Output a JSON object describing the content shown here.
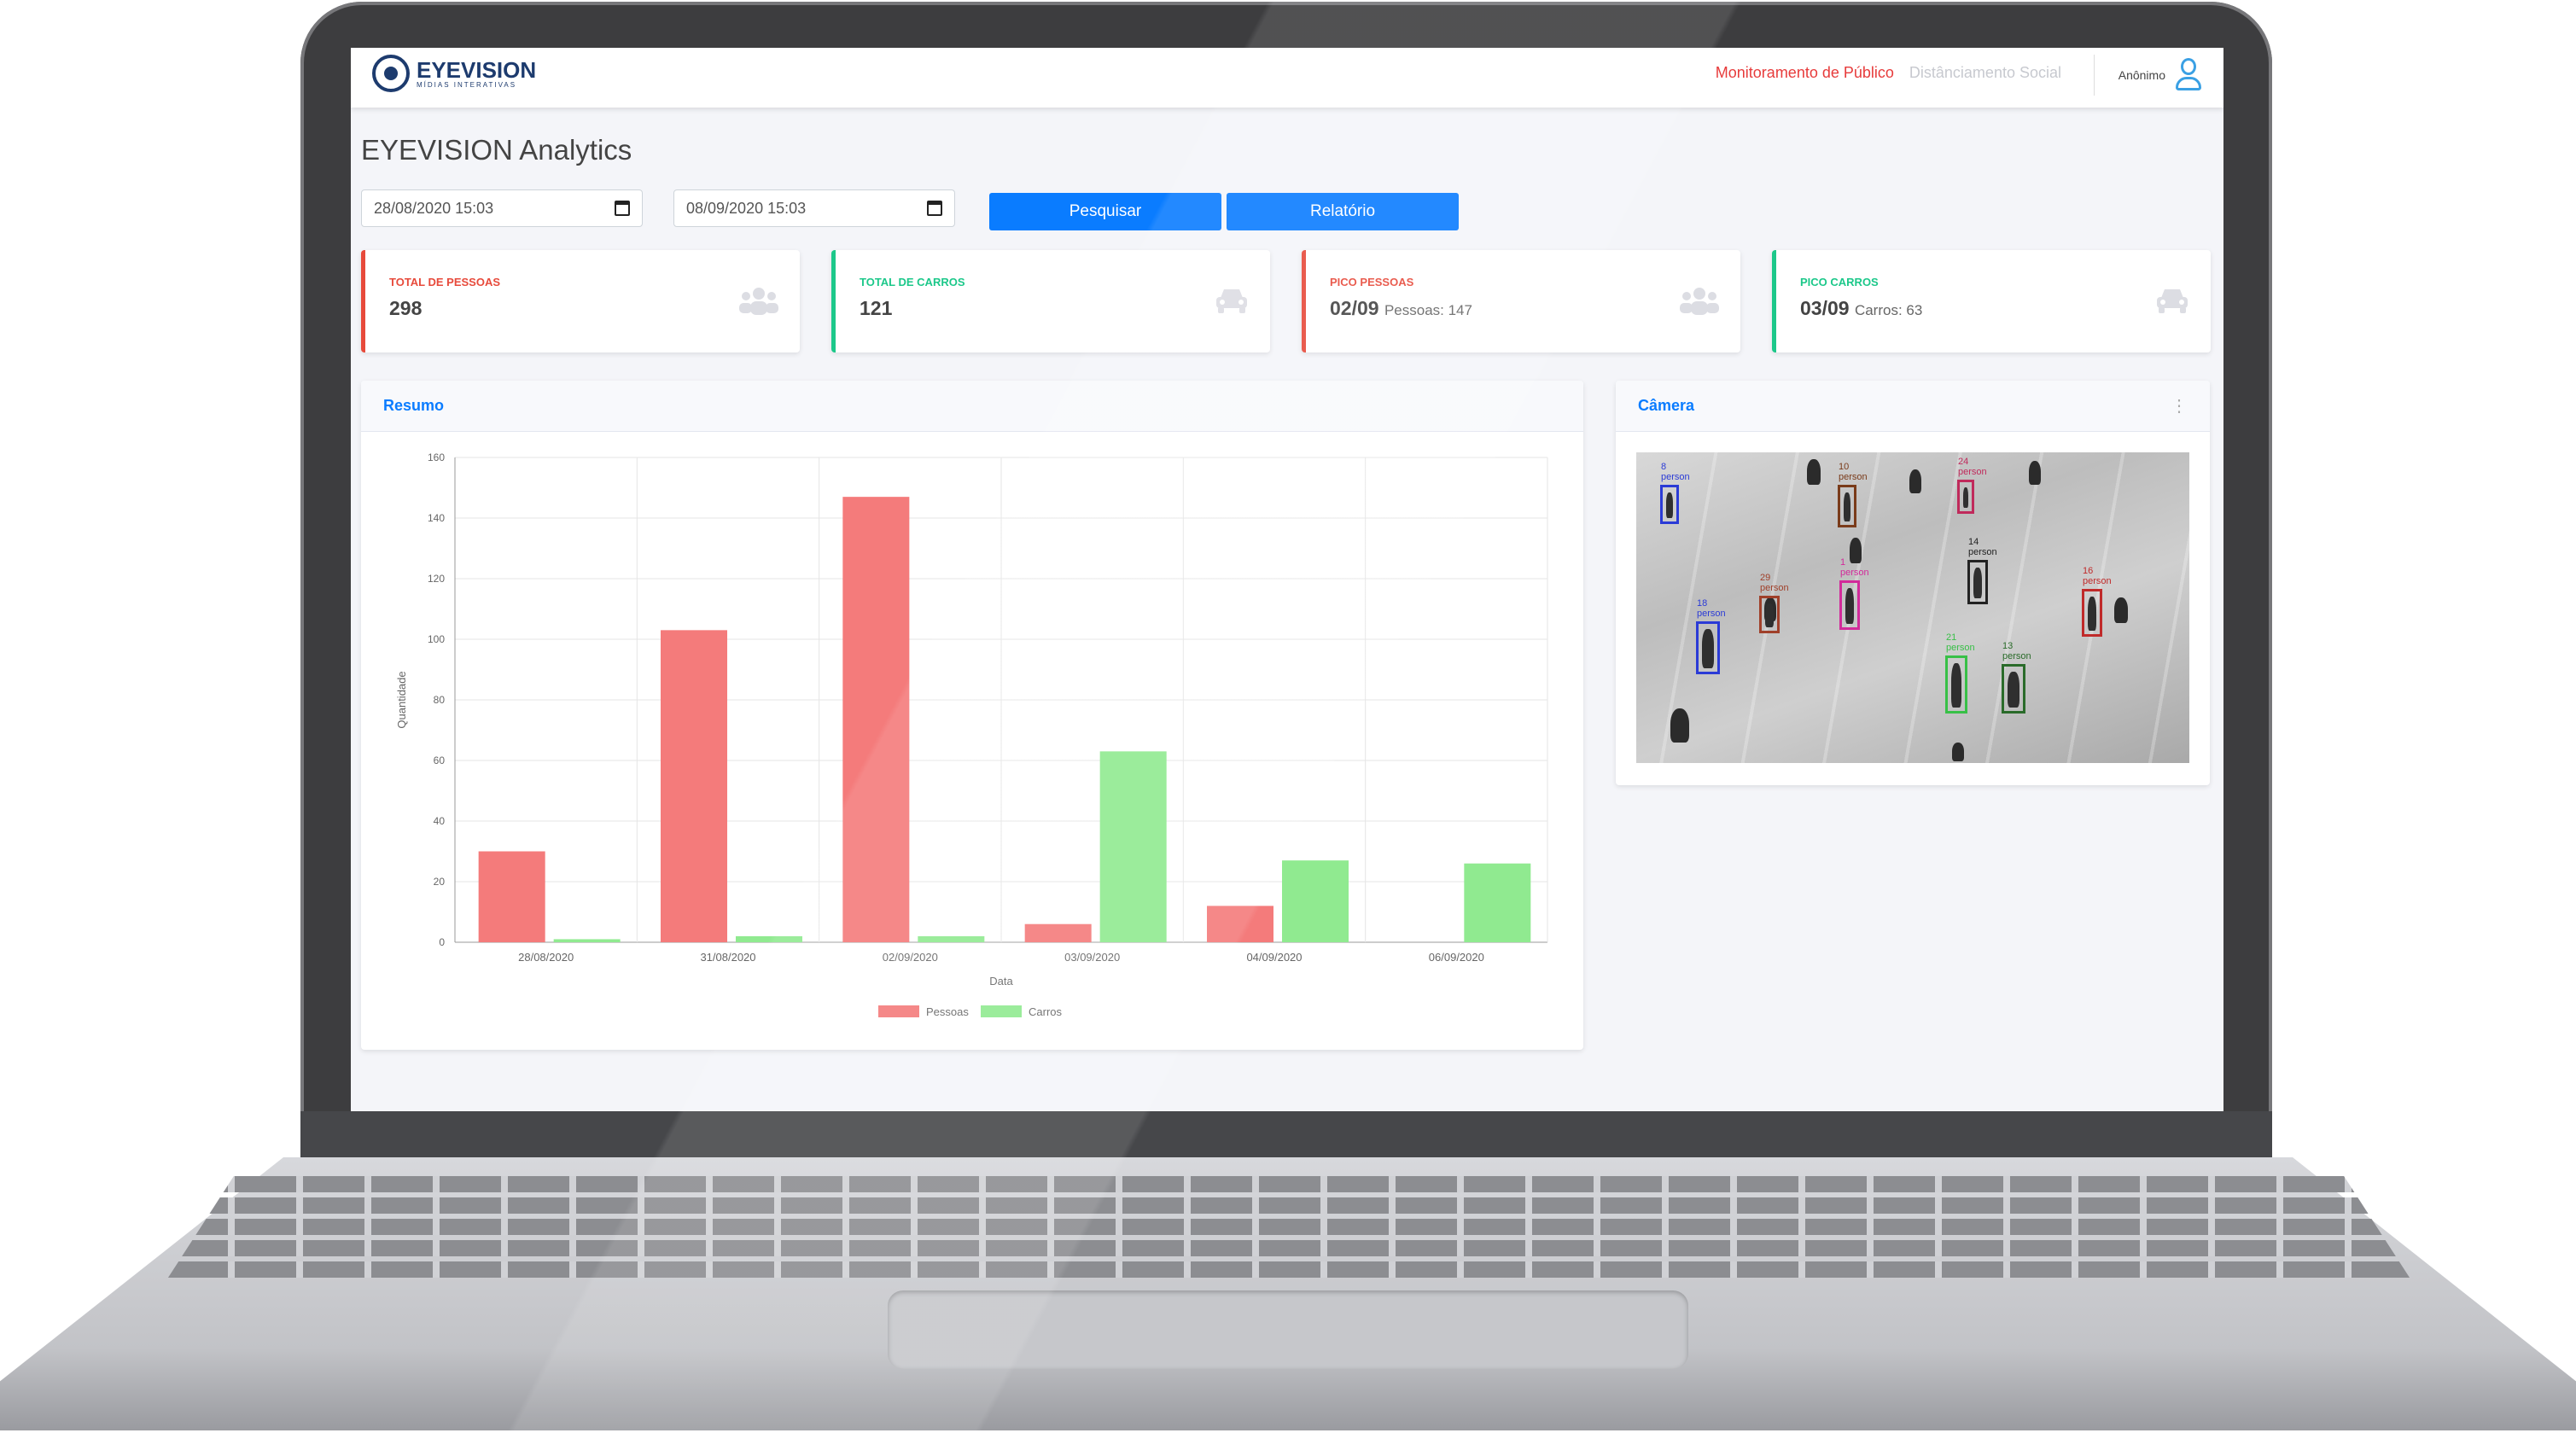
{
  "app": {
    "logo_text": "EYEVISION",
    "logo_subtitle": "MÍDIAS INTERATIVAS",
    "nav": [
      "Monitoramento de Público",
      "Distânciamento Social"
    ],
    "user_name": "Anônimo",
    "colors": {
      "accent": "#0a7cff",
      "nav_active": "#e73b3b",
      "danger": "#e74a3b",
      "success": "#1cc88a"
    }
  },
  "page": {
    "title": "EYEVISION Analytics"
  },
  "filters": {
    "start": "28/08/2020 15:03",
    "end": "08/09/2020 15:03",
    "search_label": "Pesquisar",
    "report_label": "Relatório"
  },
  "cards": [
    {
      "label": "TOTAL DE PESSOAS",
      "value": "298",
      "sub": "",
      "color": "#e74a3b",
      "icon": "users-icon"
    },
    {
      "label": "TOTAL DE CARROS",
      "value": "121",
      "sub": "",
      "color": "#1cc88a",
      "icon": "car-icon"
    },
    {
      "label": "PICO PESSOAS",
      "value": "02/09",
      "sub": "Pessoas: 147",
      "color": "#e74a3b",
      "icon": "users-icon"
    },
    {
      "label": "PICO CARROS",
      "value": "03/09",
      "sub": "Carros: 63",
      "color": "#1cc88a",
      "icon": "car-icon"
    }
  ],
  "summary_panel": {
    "title": "Resumo"
  },
  "camera_panel": {
    "title": "Câmera",
    "detections": [
      {
        "id": "8",
        "cls": "person",
        "color": "#2b3bd6"
      },
      {
        "id": "10",
        "cls": "person",
        "color": "#7a3b1a"
      },
      {
        "id": "24",
        "cls": "person",
        "color": "#c02a5b"
      },
      {
        "id": "14",
        "cls": "person",
        "color": "#222222"
      },
      {
        "id": "29",
        "cls": "person",
        "color": "#a0402a"
      },
      {
        "id": "1",
        "cls": "person",
        "color": "#d22a9a"
      },
      {
        "id": "18",
        "cls": "person",
        "color": "#2b3bd6"
      },
      {
        "id": "16",
        "cls": "person",
        "color": "#c02a2a"
      },
      {
        "id": "21",
        "cls": "person",
        "color": "#38c047"
      },
      {
        "id": "13",
        "cls": "person",
        "color": "#2a6b2a"
      }
    ]
  },
  "chart_data": {
    "type": "bar",
    "categories": [
      "28/08/2020",
      "31/08/2020",
      "02/09/2020",
      "03/09/2020",
      "04/09/2020",
      "06/09/2020"
    ],
    "series": [
      {
        "name": "Pessoas",
        "values": [
          30,
          103,
          147,
          6,
          12,
          0
        ],
        "color": "#f47b7b"
      },
      {
        "name": "Carros",
        "values": [
          1,
          2,
          2,
          63,
          27,
          26
        ],
        "color": "#90ea90"
      }
    ],
    "xlabel": "Data",
    "ylabel": "Quantidade",
    "ylim": [
      0,
      160
    ],
    "yticks": [
      0,
      20,
      40,
      60,
      80,
      100,
      120,
      140,
      160
    ],
    "grid": true,
    "legend": "bottom"
  }
}
